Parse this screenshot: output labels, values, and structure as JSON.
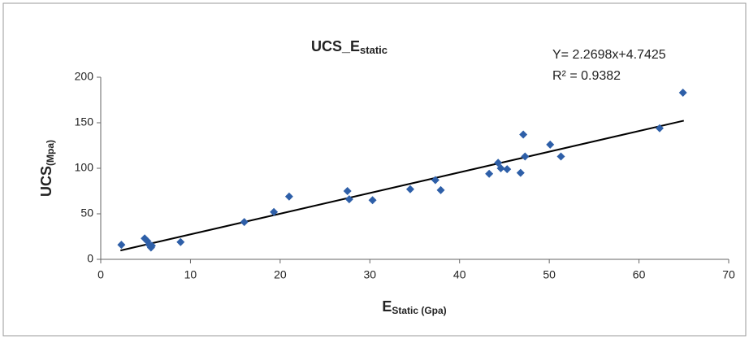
{
  "chart_data": {
    "type": "scatter",
    "title": "UCS_E",
    "title_subscript": "static",
    "x_label": "E",
    "x_label_subscript": "Static (Gpa)",
    "y_label": "UCS",
    "y_label_subscript": "(Mpa)",
    "annotations": [
      "Y= 2.2698x+4.7425",
      "R² = 0.9382"
    ],
    "xlim": [
      0,
      70
    ],
    "ylim": [
      0,
      200
    ],
    "xticks": [
      0,
      10,
      20,
      30,
      40,
      50,
      60,
      70
    ],
    "yticks": [
      0,
      50,
      100,
      150,
      200
    ],
    "grid": false,
    "series": [
      {
        "color": "#2e5fa8",
        "x": [
          2.3,
          4.9,
          5.2,
          5.4,
          5.6,
          5.7,
          8.9,
          16,
          19.3,
          21,
          27.5,
          27.7,
          30.3,
          34.5,
          37.3,
          37.9,
          43.3,
          44.3,
          44.6,
          45.3,
          46.8,
          47.1,
          47.3,
          50.1,
          51.3,
          62.3,
          64.9
        ],
        "values": [
          16,
          23,
          20,
          16,
          13,
          15,
          19,
          41,
          52,
          69,
          75,
          66,
          65,
          77,
          87,
          76,
          94,
          106,
          100,
          99,
          95,
          137,
          113,
          126,
          113,
          144,
          183
        ]
      }
    ],
    "trendline": {
      "color": "#000000",
      "x": [
        2.2,
        65
      ],
      "values": [
        9.7,
        152.3
      ]
    }
  }
}
